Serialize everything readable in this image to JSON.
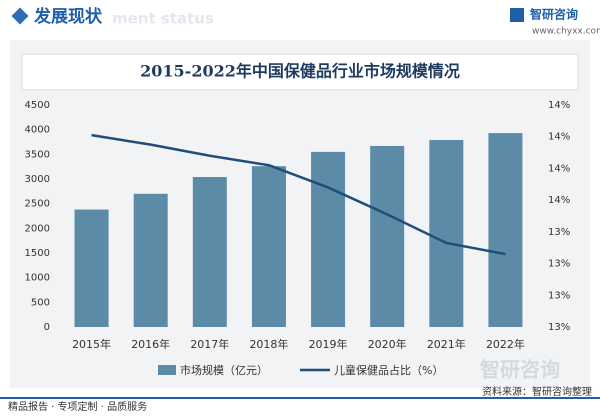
{
  "header": {
    "title": "发展现状",
    "subtitle": "ment status",
    "brand": "智研咨询",
    "url": "www.chyxx.com"
  },
  "chart_data": {
    "type": "bar",
    "title": "2015-2022年中国保健品行业市场规模情况",
    "categories": [
      "2015年",
      "2016年",
      "2017年",
      "2018年",
      "2019年",
      "2020年",
      "2021年",
      "2022年"
    ],
    "series": [
      {
        "name": "市场规模（亿元）",
        "type": "bar",
        "color": "#5b8ba6",
        "values": [
          2380,
          2700,
          3040,
          3260,
          3550,
          3670,
          3790,
          3930
        ]
      },
      {
        "name": "儿童保健品占比（%）",
        "type": "line",
        "axis": "y2",
        "color": "#1f4e79",
        "values": [
          14.01,
          13.95,
          13.88,
          13.82,
          13.68,
          13.51,
          13.33,
          13.26
        ]
      }
    ],
    "ylim": [
      0,
      4500
    ],
    "yticks": [
      0,
      500,
      1000,
      1500,
      2000,
      2500,
      3000,
      3500,
      4000,
      4500
    ],
    "y2lim": [
      12.8,
      14.2
    ],
    "y2ticks": [
      {
        "value": 12.8,
        "label": "13%"
      },
      {
        "value": 13.0,
        "label": "13%"
      },
      {
        "value": 13.2,
        "label": "13%"
      },
      {
        "value": 13.4,
        "label": "13%"
      },
      {
        "value": 13.6,
        "label": "14%"
      },
      {
        "value": 13.8,
        "label": "14%"
      },
      {
        "value": 14.0,
        "label": "14%"
      },
      {
        "value": 14.2,
        "label": "14%"
      }
    ],
    "legend": "bottom"
  },
  "footer": {
    "left": "精品报告 · 专项定制 · 品质服务",
    "watermark": "智研咨询",
    "source": "资料来源：智研咨询整理"
  }
}
